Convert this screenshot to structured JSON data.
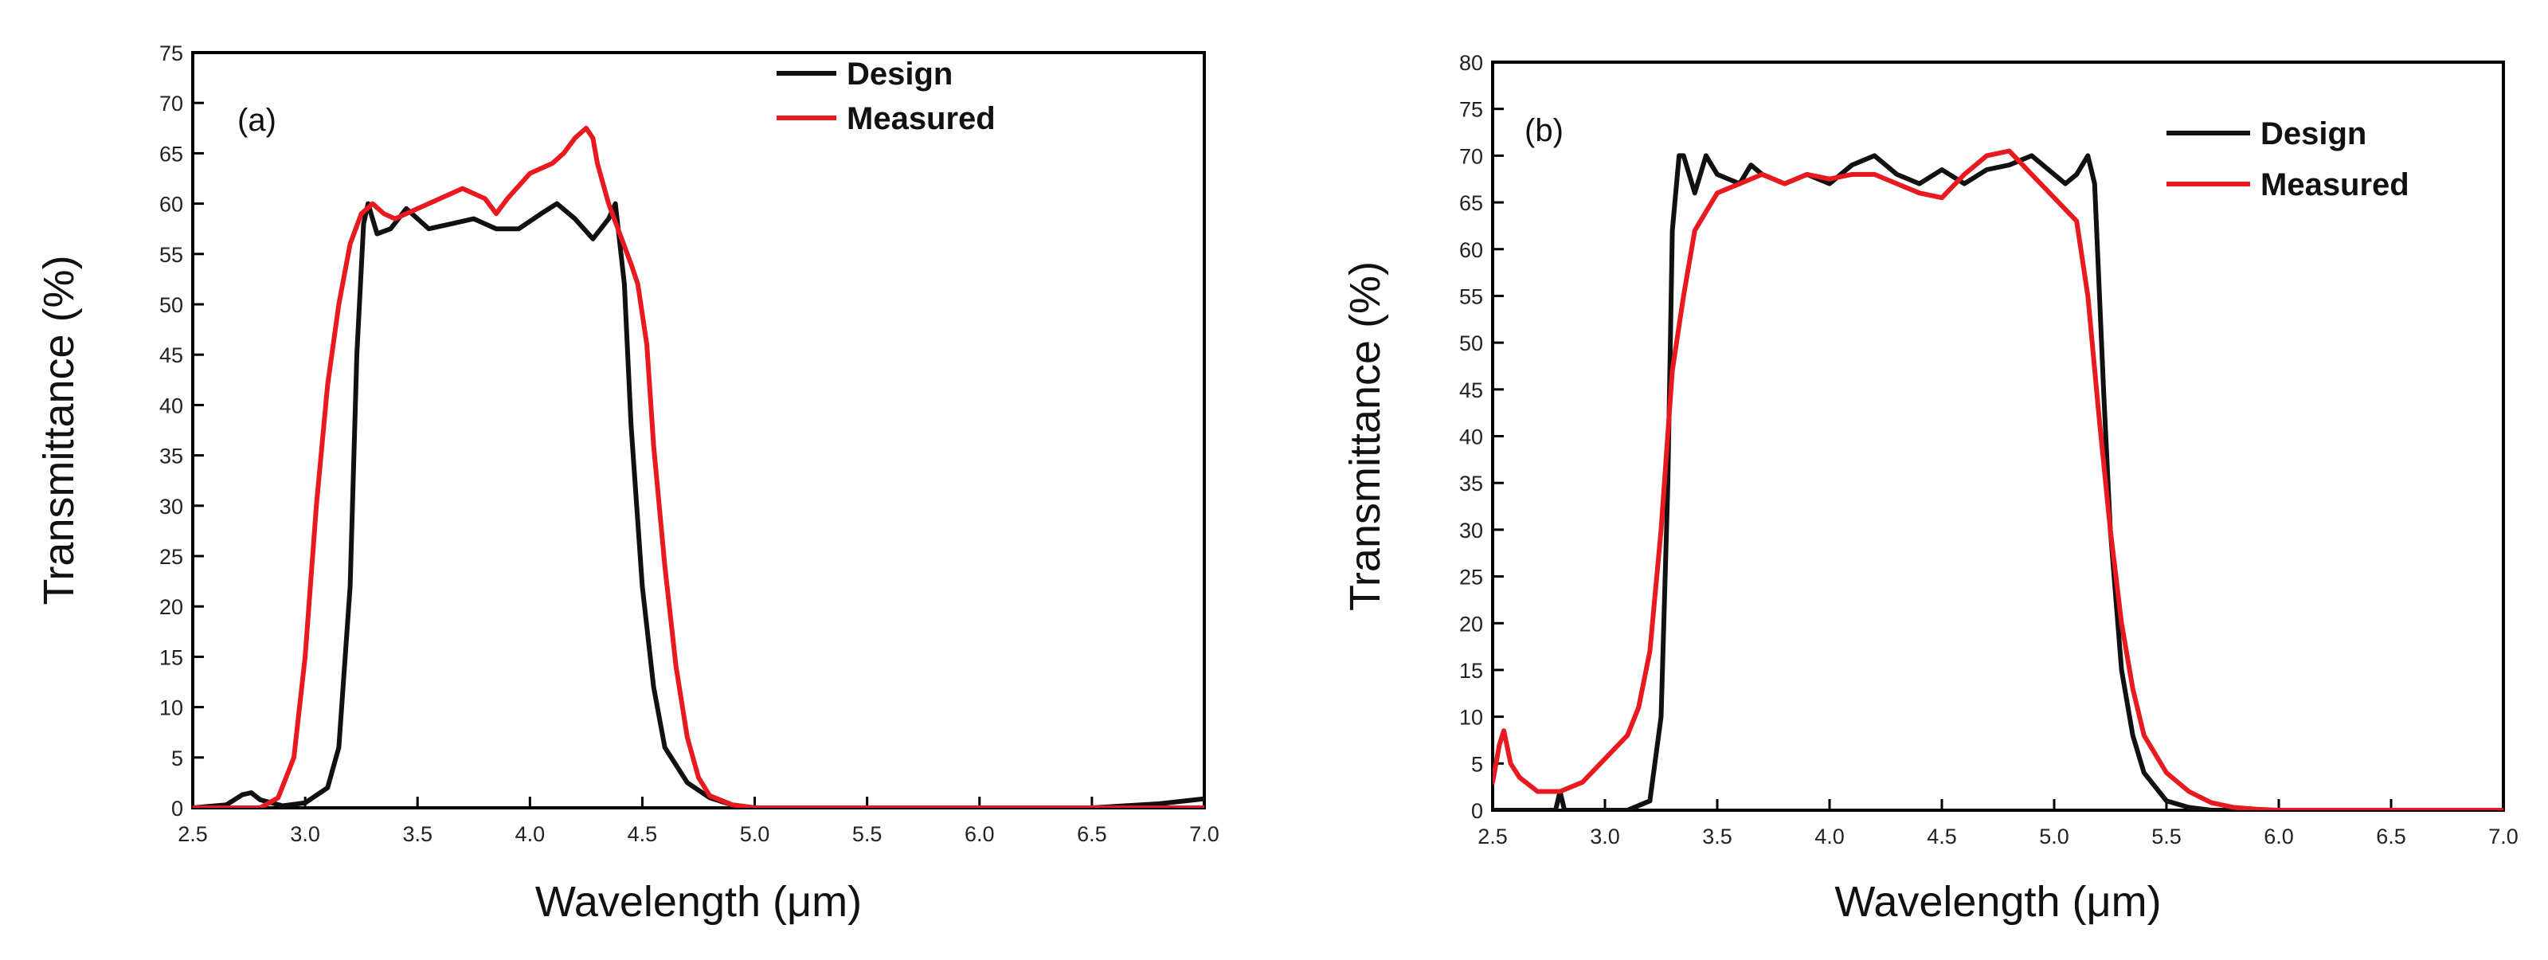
{
  "chart_data": [
    {
      "type": "line",
      "panel_label": "(a)",
      "xlabel": "Wavelength (μm)",
      "ylabel": "Transmittance (%)",
      "xlim": [
        2.5,
        7.0
      ],
      "ylim": [
        0,
        75
      ],
      "xticks": [
        "2.5",
        "3.0",
        "3.5",
        "4.0",
        "4.5",
        "5.0",
        "5.5",
        "6.0",
        "6.5",
        "7.0"
      ],
      "yticks": [
        "0",
        "5",
        "10",
        "15",
        "20",
        "25",
        "30",
        "35",
        "40",
        "45",
        "50",
        "55",
        "60",
        "65",
        "70",
        "75"
      ],
      "grid": false,
      "legend_position": "top-right",
      "series": [
        {
          "name": "Design",
          "color": "#111111",
          "x": [
            2.5,
            2.65,
            2.72,
            2.76,
            2.8,
            2.9,
            3.0,
            3.1,
            3.15,
            3.2,
            3.23,
            3.26,
            3.28,
            3.32,
            3.38,
            3.45,
            3.55,
            3.65,
            3.75,
            3.85,
            3.95,
            4.05,
            4.12,
            4.2,
            4.28,
            4.35,
            4.38,
            4.42,
            4.45,
            4.5,
            4.55,
            4.6,
            4.7,
            4.8,
            4.9,
            5.0,
            5.2,
            5.5,
            6.0,
            6.5,
            6.8,
            7.0
          ],
          "y": [
            0,
            0.3,
            1.3,
            1.5,
            0.8,
            0.2,
            0.5,
            2,
            6,
            22,
            45,
            58,
            60,
            57,
            57.5,
            59.5,
            57.5,
            58,
            58.5,
            57.5,
            57.5,
            59,
            60,
            58.5,
            56.5,
            58.5,
            60,
            52,
            38,
            22,
            12,
            6,
            2.5,
            1,
            0.3,
            0,
            0,
            0,
            0,
            0,
            0.4,
            0.9
          ]
        },
        {
          "name": "Measured",
          "color": "#e8191f",
          "x": [
            2.5,
            2.8,
            2.88,
            2.95,
            3.0,
            3.05,
            3.1,
            3.15,
            3.2,
            3.25,
            3.3,
            3.35,
            3.4,
            3.5,
            3.6,
            3.7,
            3.8,
            3.85,
            3.9,
            4.0,
            4.1,
            4.15,
            4.2,
            4.25,
            4.28,
            4.3,
            4.35,
            4.4,
            4.45,
            4.48,
            4.52,
            4.55,
            4.6,
            4.65,
            4.7,
            4.75,
            4.8,
            4.9,
            5.0,
            5.2,
            5.5,
            6.0,
            6.5,
            7.0
          ],
          "y": [
            0,
            0,
            1,
            5,
            15,
            30,
            42,
            50,
            56,
            59,
            60,
            59,
            58.5,
            59.5,
            60.5,
            61.5,
            60.5,
            59,
            60.5,
            63,
            64,
            65,
            66.5,
            67.5,
            66.5,
            64,
            60,
            57,
            54,
            52,
            46,
            36,
            24,
            14,
            7,
            3,
            1.2,
            0.3,
            0,
            0,
            0,
            0,
            0,
            0
          ]
        }
      ]
    },
    {
      "type": "line",
      "panel_label": "(b)",
      "xlabel": "Wavelength (μm)",
      "ylabel": "Transmittance (%)",
      "xlim": [
        2.5,
        7.0
      ],
      "ylim": [
        0,
        80
      ],
      "xticks": [
        "2.5",
        "3.0",
        "3.5",
        "4.0",
        "4.5",
        "5.0",
        "5.5",
        "6.0",
        "6.5",
        "7.0"
      ],
      "yticks": [
        "0",
        "5",
        "10",
        "15",
        "20",
        "25",
        "30",
        "35",
        "40",
        "45",
        "50",
        "55",
        "60",
        "65",
        "70",
        "75",
        "80"
      ],
      "grid": false,
      "legend_position": "top-right",
      "series": [
        {
          "name": "Design",
          "color": "#111111",
          "x": [
            2.5,
            2.78,
            2.8,
            2.82,
            2.9,
            3.1,
            3.2,
            3.25,
            3.28,
            3.3,
            3.33,
            3.35,
            3.4,
            3.45,
            3.5,
            3.6,
            3.65,
            3.7,
            3.8,
            3.9,
            4.0,
            4.1,
            4.2,
            4.3,
            4.4,
            4.5,
            4.6,
            4.7,
            4.8,
            4.85,
            4.9,
            5.0,
            5.05,
            5.1,
            5.15,
            5.18,
            5.22,
            5.25,
            5.3,
            5.35,
            5.4,
            5.5,
            5.6,
            5.7,
            7.0
          ],
          "y": [
            0,
            0,
            2,
            0,
            0,
            0,
            1,
            10,
            35,
            62,
            70,
            70,
            66,
            70,
            68,
            67,
            69,
            68,
            67,
            68,
            67,
            69,
            70,
            68,
            67,
            68.5,
            67,
            68.5,
            69,
            69.5,
            70,
            68,
            67,
            68,
            70,
            67,
            45,
            30,
            15,
            8,
            4,
            1,
            0.3,
            0,
            0
          ]
        },
        {
          "name": "Measured",
          "color": "#e8191f",
          "x": [
            2.5,
            2.53,
            2.55,
            2.58,
            2.62,
            2.7,
            2.8,
            2.9,
            3.0,
            3.1,
            3.15,
            3.2,
            3.25,
            3.3,
            3.35,
            3.4,
            3.5,
            3.6,
            3.7,
            3.8,
            3.9,
            4.0,
            4.1,
            4.2,
            4.3,
            4.4,
            4.5,
            4.6,
            4.7,
            4.8,
            4.9,
            5.0,
            5.1,
            5.15,
            5.2,
            5.25,
            5.3,
            5.35,
            5.4,
            5.5,
            5.6,
            5.7,
            5.8,
            5.9,
            6.0,
            7.0
          ],
          "y": [
            3,
            7,
            8.5,
            5,
            3.5,
            2,
            2,
            3,
            5.5,
            8,
            11,
            17,
            30,
            47,
            55,
            62,
            66,
            67,
            68,
            67,
            68,
            67.5,
            68,
            68,
            67,
            66,
            65.5,
            68,
            70,
            70.5,
            68,
            65.5,
            63,
            55,
            42,
            30,
            20,
            13,
            8,
            4,
            2,
            0.8,
            0.3,
            0.1,
            0,
            0
          ]
        }
      ]
    }
  ]
}
